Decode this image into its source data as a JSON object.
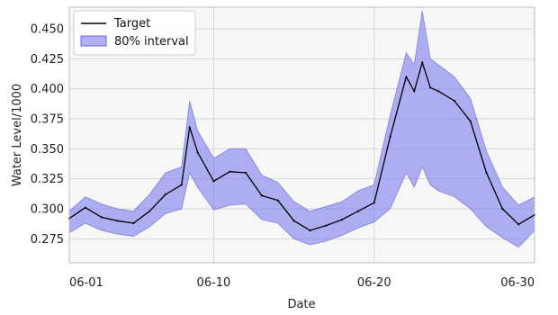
{
  "chart_data": {
    "type": "line",
    "title": "",
    "xlabel": "Date",
    "ylabel": "Water Level/1000",
    "x_start": "06-01",
    "x_end": "06-30",
    "xlim": [
      "06-01",
      "06-30"
    ],
    "ylim": [
      0.255,
      0.468
    ],
    "x_ticks": [
      "06-01",
      "06-10",
      "06-20",
      "06-30"
    ],
    "y_ticks": [
      0.275,
      0.3,
      0.325,
      0.35,
      0.375,
      0.4,
      0.425,
      0.45
    ],
    "y_tick_labels": [
      "0.275",
      "0.300",
      "0.325",
      "0.350",
      "0.375",
      "0.400",
      "0.425",
      "0.450"
    ],
    "grid": true,
    "legend_position": "top-left",
    "colors": {
      "target": "#000000",
      "interval_fill": "#7b7bef",
      "interval_edge": "#4b4bd8",
      "plot_bg": "#f7f7f7",
      "grid": "#d6d6d6"
    },
    "series": [
      {
        "name": "Target",
        "kind": "line",
        "x": [
          "06-01",
          "06-02",
          "06-03",
          "06-04",
          "06-05",
          "06-06",
          "06-07",
          "06-08",
          "06-08",
          "06-09",
          "06-10",
          "06-11",
          "06-12",
          "06-13",
          "06-14",
          "06-15",
          "06-16",
          "06-17",
          "06-18",
          "06-19",
          "06-20",
          "06-21",
          "06-22",
          "06-22",
          "06-23",
          "06-23",
          "06-24",
          "06-25",
          "06-26",
          "06-27",
          "06-28",
          "06-29",
          "06-30"
        ],
        "values": [
          0.292,
          0.301,
          0.293,
          0.29,
          0.288,
          0.298,
          0.312,
          0.32,
          0.368,
          0.347,
          0.323,
          0.331,
          0.33,
          0.311,
          0.307,
          0.29,
          0.282,
          0.286,
          0.291,
          0.298,
          0.305,
          0.36,
          0.41,
          0.398,
          0.422,
          0.401,
          0.398,
          0.39,
          0.373,
          0.33,
          0.3,
          0.287,
          0.295
        ]
      },
      {
        "name": "80% interval",
        "kind": "band",
        "x": [
          "06-01",
          "06-02",
          "06-03",
          "06-04",
          "06-05",
          "06-06",
          "06-07",
          "06-08",
          "06-08",
          "06-09",
          "06-10",
          "06-11",
          "06-12",
          "06-13",
          "06-14",
          "06-15",
          "06-16",
          "06-17",
          "06-18",
          "06-19",
          "06-20",
          "06-21",
          "06-22",
          "06-22",
          "06-23",
          "06-23",
          "06-24",
          "06-25",
          "06-26",
          "06-27",
          "06-28",
          "06-29",
          "06-30"
        ],
        "lower": [
          0.28,
          0.288,
          0.282,
          0.279,
          0.277,
          0.285,
          0.296,
          0.3,
          0.33,
          0.318,
          0.299,
          0.303,
          0.304,
          0.291,
          0.288,
          0.275,
          0.27,
          0.273,
          0.278,
          0.284,
          0.289,
          0.3,
          0.33,
          0.318,
          0.335,
          0.32,
          0.315,
          0.31,
          0.3,
          0.285,
          0.276,
          0.268,
          0.282
        ],
        "upper": [
          0.298,
          0.31,
          0.304,
          0.3,
          0.298,
          0.312,
          0.33,
          0.335,
          0.39,
          0.365,
          0.342,
          0.35,
          0.35,
          0.328,
          0.322,
          0.306,
          0.298,
          0.302,
          0.306,
          0.315,
          0.32,
          0.378,
          0.43,
          0.42,
          0.465,
          0.425,
          0.42,
          0.41,
          0.392,
          0.348,
          0.318,
          0.303,
          0.31
        ]
      }
    ]
  }
}
